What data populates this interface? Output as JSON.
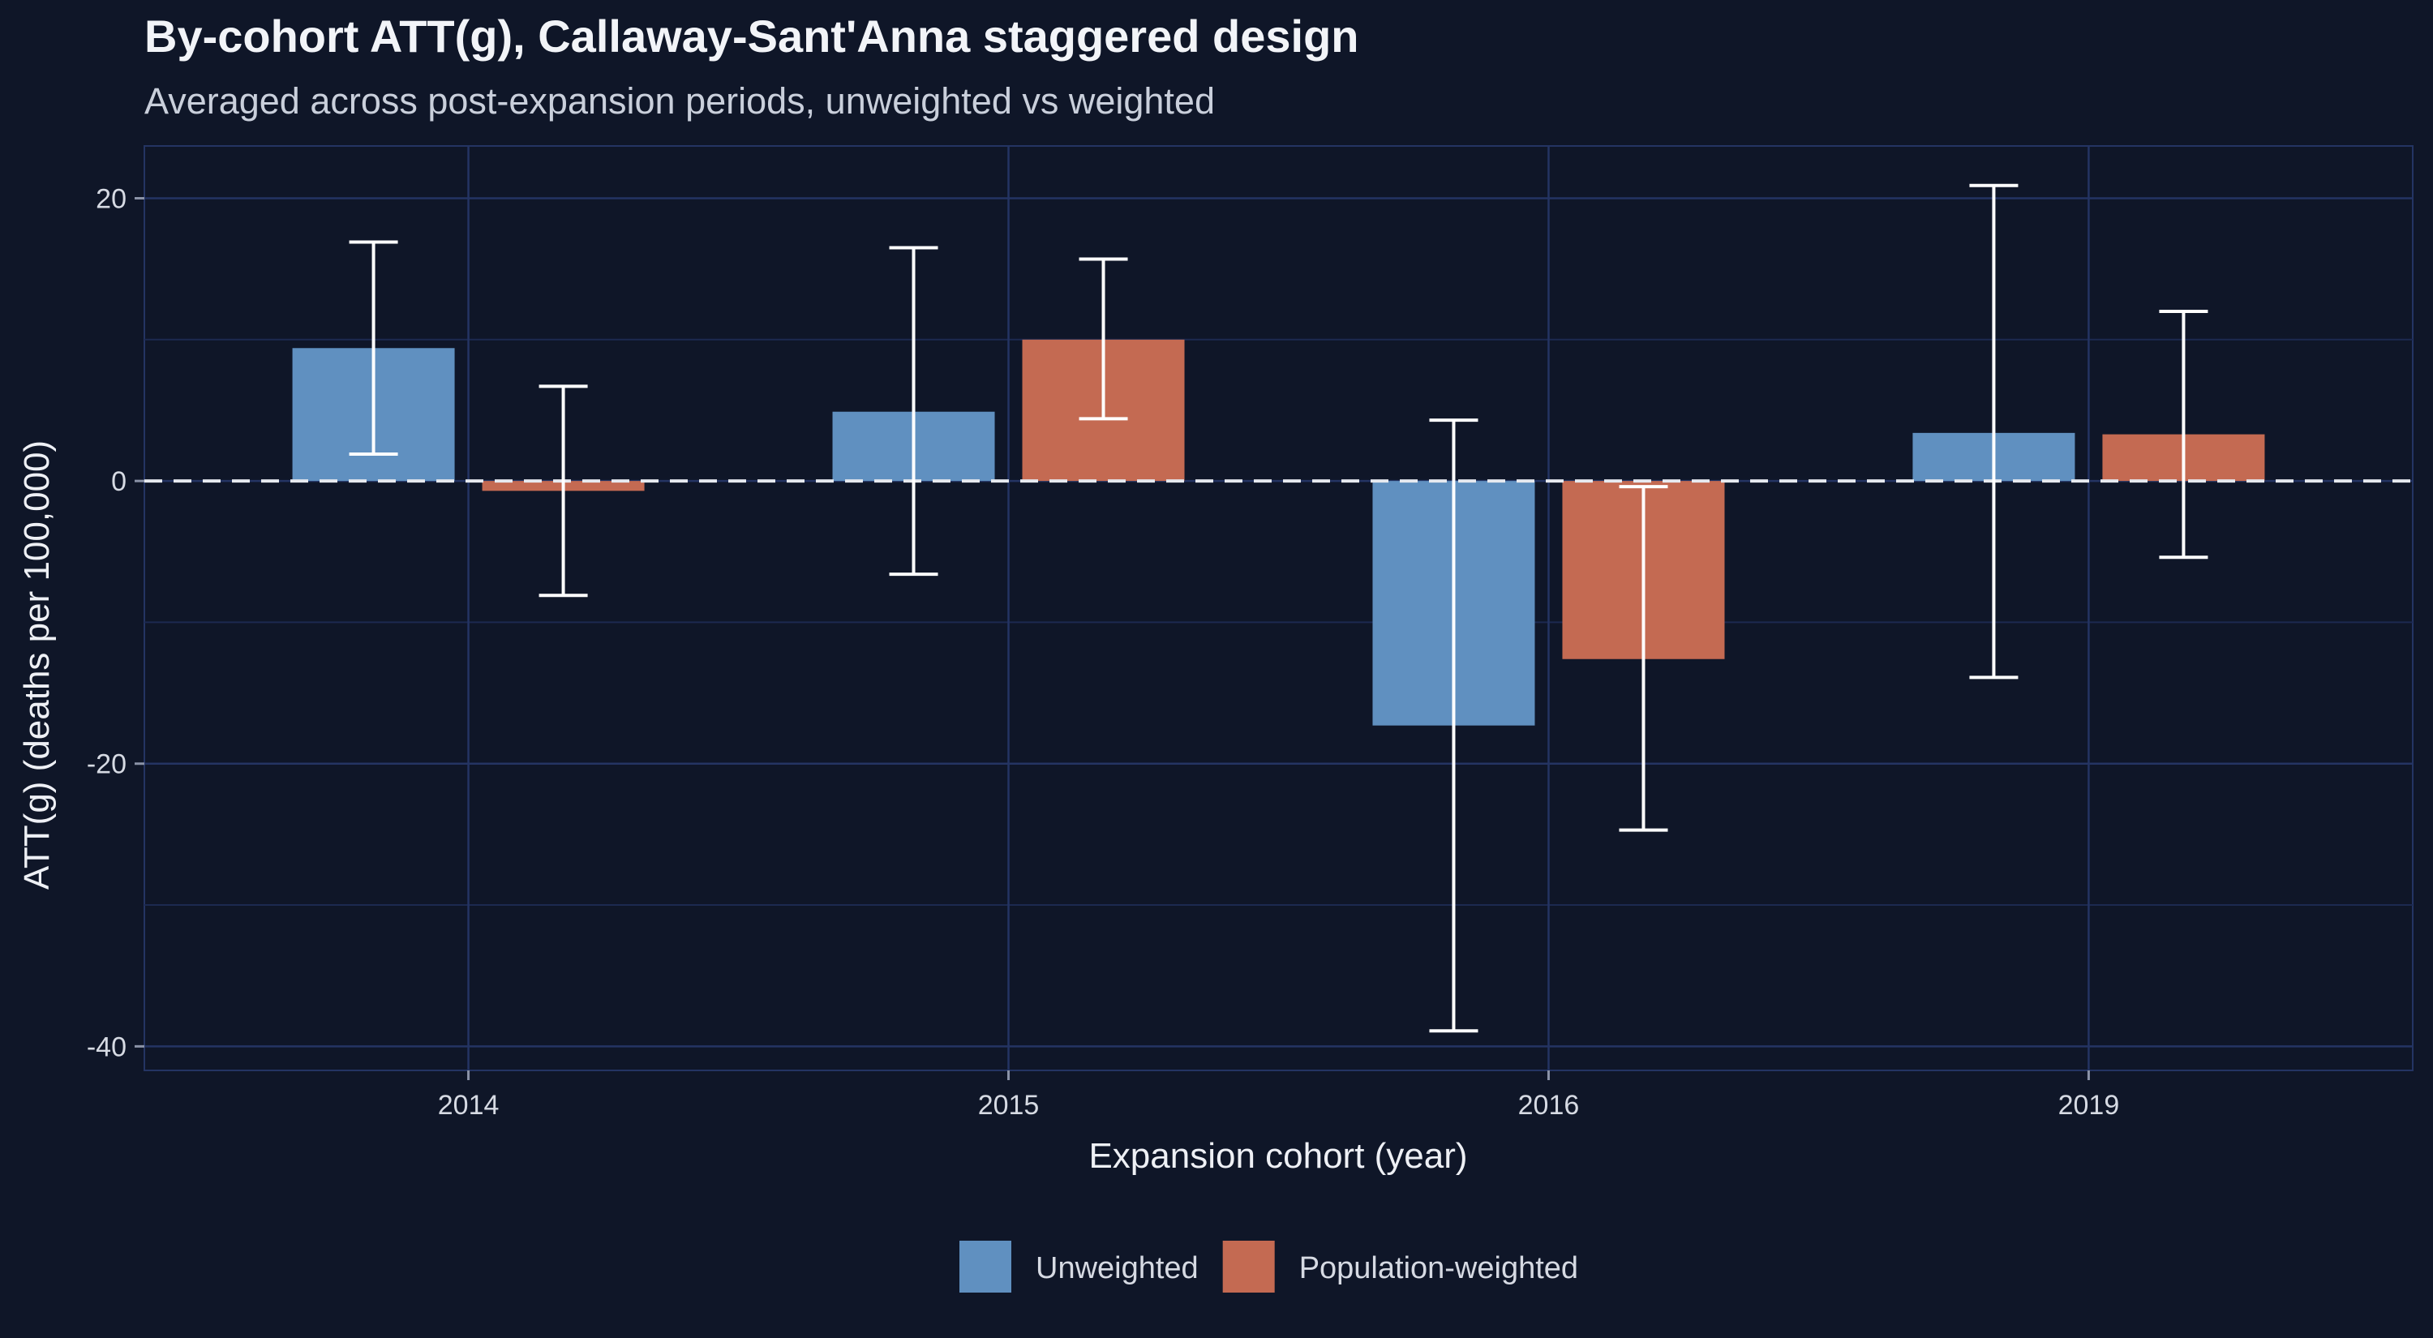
{
  "chart_data": {
    "type": "bar",
    "title": "By-cohort ATT(g), Callaway-Sant'Anna staggered design",
    "subtitle": "Averaged across post-expansion periods, unweighted vs weighted",
    "xlabel": "Expansion cohort (year)",
    "ylabel": "ATT(g) (deaths per 100,000)",
    "categories": [
      "2014",
      "2015",
      "2016",
      "2019"
    ],
    "series": [
      {
        "name": "Unweighted",
        "color": "#6090c0",
        "values": [
          9.4,
          4.9,
          -17.3,
          3.4
        ],
        "ci_low": [
          1.9,
          -6.6,
          -38.9,
          -13.9
        ],
        "ci_high": [
          16.9,
          16.5,
          4.3,
          20.9
        ]
      },
      {
        "name": "Population-weighted",
        "color": "#c46a52",
        "values": [
          -0.7,
          10.0,
          -12.6,
          3.3
        ],
        "ci_low": [
          -8.1,
          4.4,
          -24.7,
          -5.4
        ],
        "ci_high": [
          6.7,
          15.7,
          -0.4,
          12.0
        ]
      }
    ],
    "ylim": [
      -41.7,
      23.7
    ],
    "yticks": [
      -40,
      -20,
      0,
      20
    ],
    "reference_line": 0,
    "grid": true,
    "legend_position": "bottom"
  }
}
